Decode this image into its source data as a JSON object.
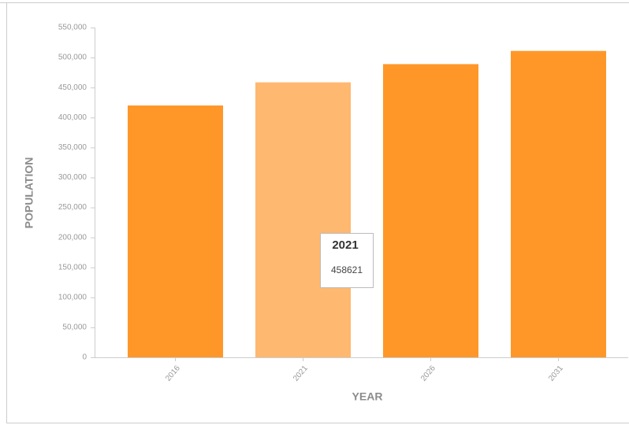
{
  "chart_data": {
    "type": "bar",
    "x_label": "YEAR",
    "y_label": "POPULATION",
    "categories": [
      "2016",
      "2021",
      "2026",
      "2031"
    ],
    "values": [
      420000,
      458621,
      489000,
      511000
    ],
    "color": "#ff9728",
    "highlight_color": "#ffb870",
    "highlight_index": 1,
    "ylim": [
      0,
      550000
    ],
    "yticks": [
      0,
      {
        "value": 50000,
        "label": "50,000"
      },
      {
        "value": 100000,
        "label": "100,000"
      },
      {
        "value": 150000,
        "label": "150,000"
      },
      {
        "value": 200000,
        "label": "200,000"
      },
      {
        "value": 250000,
        "label": "250,000"
      },
      {
        "value": 300000,
        "label": "300,000"
      },
      {
        "value": 350000,
        "label": "350,000"
      },
      {
        "value": 400000,
        "label": "400,000"
      },
      {
        "value": 450000,
        "label": "450,000"
      },
      {
        "value": 500000,
        "label": "500,000"
      },
      {
        "value": 550000,
        "label": "550,000"
      }
    ],
    "grid": false
  }
}
